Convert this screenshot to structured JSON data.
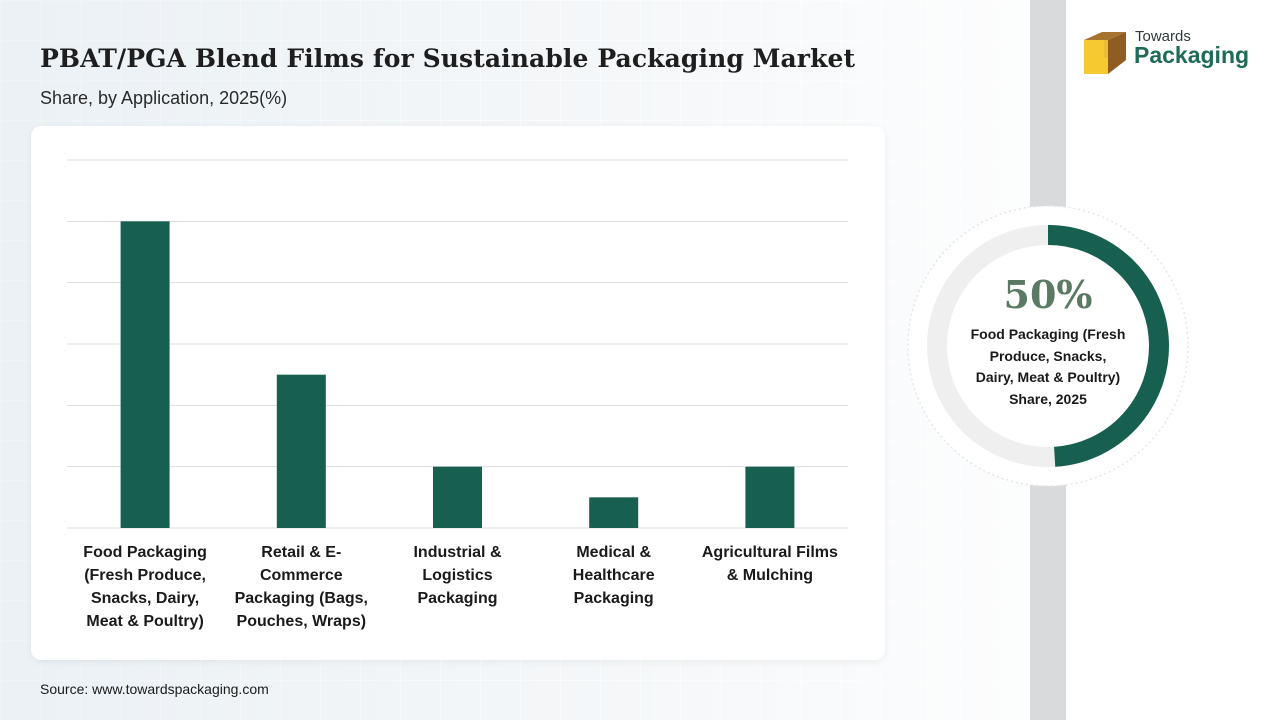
{
  "header": {
    "title": "PBAT/PGA Blend Films for Sustainable Packaging Market",
    "subtitle": "Share, by Application, 2025(%)"
  },
  "logo": {
    "line1": "Towards",
    "line2": "Packaging",
    "icon": "box-icon"
  },
  "colors": {
    "bar": "#17604f",
    "donut_fill": "#17604f",
    "donut_track": "#efefef",
    "gridline": "#dcdcdc"
  },
  "chart_data": {
    "type": "bar",
    "categories": [
      "Food Packaging (Fresh Produce, Snacks, Dairy, Meat & Poultry)",
      "Retail & E-Commerce Packaging (Bags, Pouches, Wraps)",
      "Industrial & Logistics Packaging",
      "Medical & Healthcare Packaging",
      "Agricultural Films & Mulching"
    ],
    "category_label_lines": [
      [
        "Food Packaging",
        "(Fresh Produce,",
        "Snacks, Dairy,",
        "Meat & Poultry)"
      ],
      [
        "Retail & E-",
        "Commerce",
        "Packaging (Bags,",
        "Pouches, Wraps)"
      ],
      [
        "Industrial &",
        "Logistics",
        "Packaging"
      ],
      [
        "Medical &",
        "Healthcare",
        "Packaging"
      ],
      [
        "Agricultural Films",
        "& Mulching"
      ]
    ],
    "values": [
      50,
      25,
      10,
      5,
      10
    ],
    "ylim": [
      0,
      60
    ],
    "grid": true,
    "xlabel": "",
    "ylabel": ""
  },
  "highlight": {
    "value": 50,
    "value_label": "50%",
    "lines": [
      "Food Packaging (Fresh",
      "Produce, Snacks,",
      "Dairy, Meat & Poultry)",
      "Share, 2025"
    ]
  },
  "source": "Source: www.towardspackaging.com"
}
